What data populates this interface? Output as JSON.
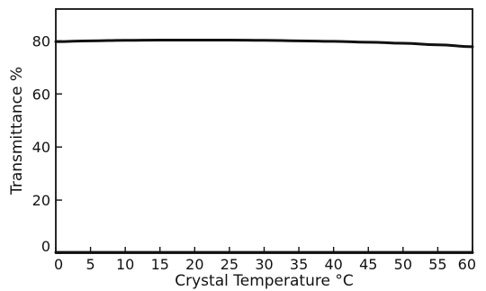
{
  "chart_data": {
    "type": "line",
    "title": "",
    "xlabel": "Crystal Temperature °C",
    "ylabel": "Transmittance %",
    "xlim": [
      0,
      60
    ],
    "ylim": [
      0,
      92
    ],
    "xticks": [
      0,
      5,
      10,
      15,
      20,
      25,
      30,
      35,
      40,
      45,
      50,
      55,
      60
    ],
    "xtick_labels": [
      "0",
      "5",
      "10",
      "15",
      "20",
      "25",
      "30",
      "35",
      "40",
      "45",
      "50",
      "55",
      "60"
    ],
    "yticks": [
      0,
      20,
      40,
      60,
      80
    ],
    "ytick_labels": [
      "0",
      "20",
      "40",
      "60",
      "80"
    ],
    "grid": false,
    "legend": "none",
    "series": [
      {
        "x": [
          0,
          5,
          10,
          15,
          20,
          25,
          30,
          35,
          40,
          45,
          50,
          55,
          60
        ],
        "y": [
          79.7,
          80.0,
          80.2,
          80.3,
          80.3,
          80.3,
          80.2,
          80.0,
          79.8,
          79.5,
          79.1,
          78.5,
          77.8
        ]
      },
      {
        "x": [
          0,
          60
        ],
        "y": [
          0.3,
          0.3
        ]
      }
    ]
  }
}
